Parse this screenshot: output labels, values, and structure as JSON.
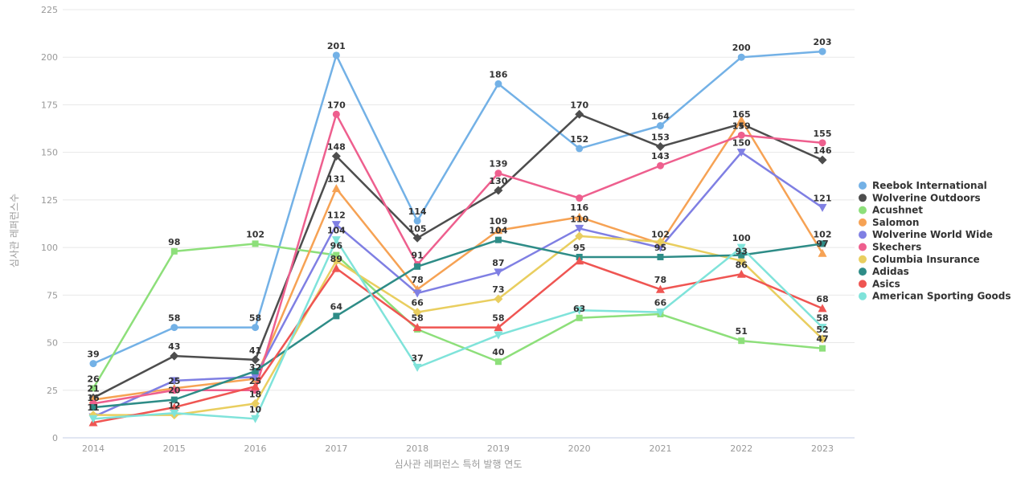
{
  "chart_data": {
    "type": "line",
    "title": "",
    "xlabel": "심사관 레퍼런스 특허 발행 연도",
    "ylabel": "심사관 레퍼런스수",
    "categories": [
      2014,
      2015,
      2016,
      2017,
      2018,
      2019,
      2020,
      2021,
      2022,
      2023
    ],
    "ylim": [
      0,
      225
    ],
    "ytick_step": 25,
    "grid": "horizontal-only",
    "legend_position": "right",
    "series": [
      {
        "name": "Reebok International",
        "color": "#73b1e6",
        "symbol": "circle",
        "values": [
          39,
          58,
          58,
          201,
          114,
          186,
          152,
          164,
          200,
          203
        ],
        "hidden_label_years": []
      },
      {
        "name": "Wolverine Outdoors",
        "color": "#4d4d4d",
        "symbol": "diamond",
        "values": [
          21,
          43,
          41,
          148,
          105,
          130,
          170,
          153,
          165,
          146
        ],
        "hidden_label_years": []
      },
      {
        "name": "Acushnet",
        "color": "#8ddf7a",
        "symbol": "square",
        "values": [
          26,
          98,
          102,
          96,
          57,
          40,
          63,
          65,
          51,
          47
        ],
        "hidden_label_years": [
          2018,
          2021
        ]
      },
      {
        "name": "Salomon",
        "color": "#f6a254",
        "symbol": "triangle-up",
        "values": [
          20,
          26,
          31,
          131,
          78,
          109,
          116,
          102,
          167,
          97
        ],
        "hidden_label_years": [
          2014,
          2015,
          2016,
          2022
        ]
      },
      {
        "name": "Wolverine World Wide",
        "color": "#7f7fe3",
        "symbol": "triangle-down",
        "values": [
          11,
          30,
          32,
          112,
          76,
          87,
          110,
          100,
          150,
          121
        ],
        "hidden_label_years": [
          2015,
          2018,
          2021
        ]
      },
      {
        "name": "Skechers",
        "color": "#ee5f8e",
        "symbol": "circle",
        "values": [
          18,
          25,
          25,
          170,
          91,
          139,
          126,
          143,
          159,
          155
        ],
        "hidden_label_years": [
          2014,
          2020
        ]
      },
      {
        "name": "Columbia Insurance",
        "color": "#e9ce5f",
        "symbol": "diamond",
        "values": [
          12,
          12,
          18,
          93,
          66,
          73,
          106,
          103,
          93,
          52
        ],
        "hidden_label_years": [
          2014,
          2017,
          2020,
          2021
        ]
      },
      {
        "name": "Adidas",
        "color": "#2e8c87",
        "symbol": "square",
        "values": [
          16,
          20,
          35,
          64,
          90,
          104,
          95,
          95,
          96,
          102
        ],
        "hidden_label_years": [
          2016,
          2018,
          2022
        ]
      },
      {
        "name": "Asics",
        "color": "#ef5552",
        "symbol": "triangle-up",
        "values": [
          8,
          16,
          27,
          89,
          58,
          58,
          93,
          78,
          86,
          68
        ],
        "hidden_label_years": [
          2014,
          2015,
          2016,
          2020
        ]
      },
      {
        "name": "American Sporting Goods",
        "color": "#7fe3da",
        "symbol": "triangle-down",
        "values": [
          10,
          13,
          10,
          104,
          37,
          54,
          67,
          66,
          100,
          58
        ],
        "hidden_label_years": [
          2014,
          2015,
          2019,
          2020
        ]
      }
    ]
  }
}
